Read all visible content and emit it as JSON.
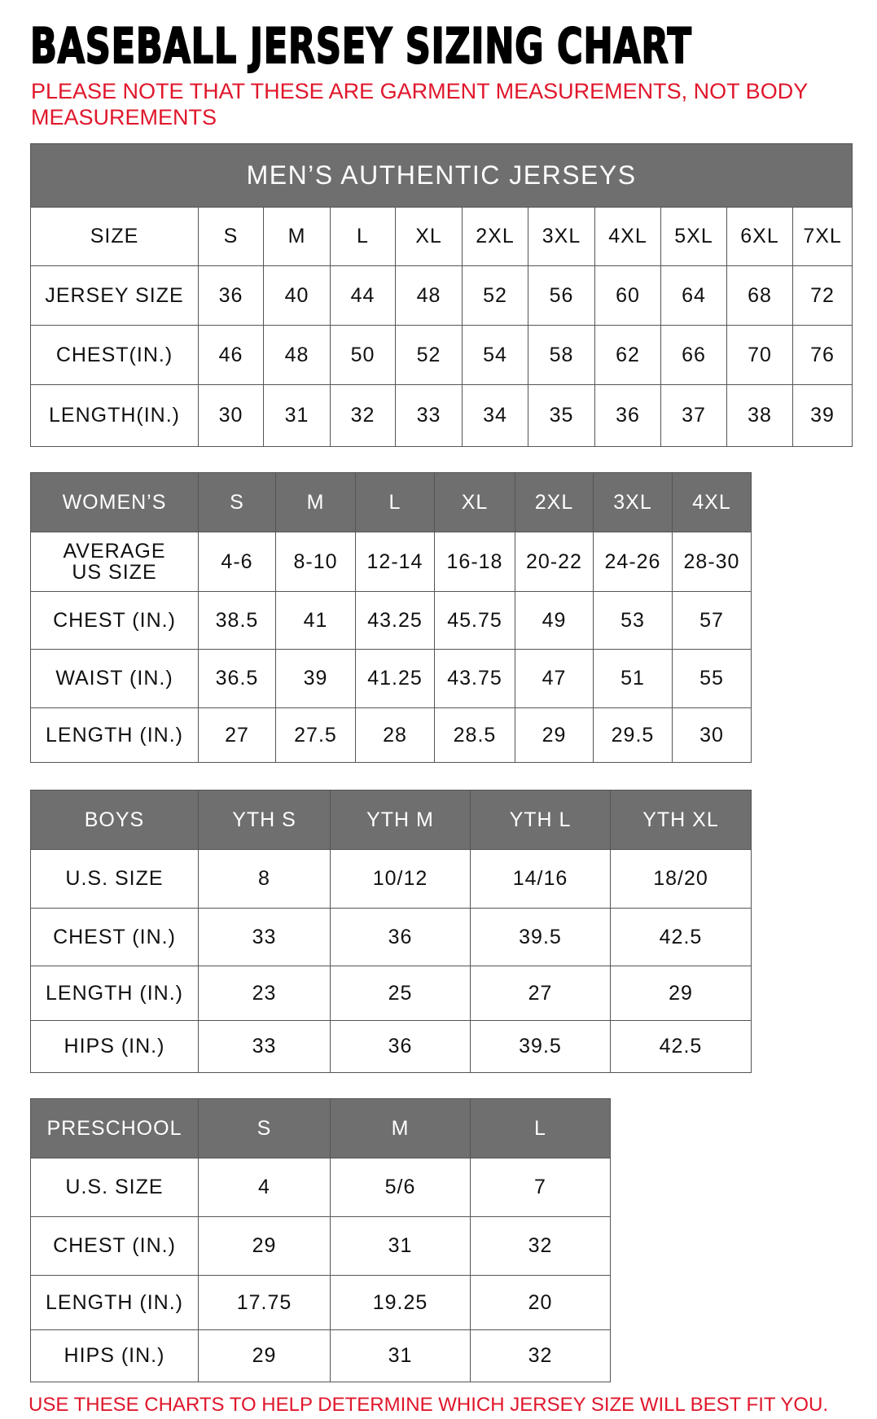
{
  "title": "BASEBALL JERSEY SIZING CHART",
  "note": "PLEASE NOTE THAT THESE ARE GARMENT MEASUREMENTS, NOT BODY MEASUREMENTS",
  "footer": "USE THESE CHARTS TO HELP DETERMINE WHICH JERSEY SIZE WILL BEST FIT YOU.",
  "colors": {
    "header_bg": "#6f6f6f",
    "note_red": "#e0162b"
  },
  "tables": [
    {
      "caption": "MEN’S AUTHENTIC JERSEYS",
      "header": [
        "SIZE",
        "S",
        "M",
        "L",
        "XL",
        "2XL",
        "3XL",
        "4XL",
        "5XL",
        "6XL",
        "7XL"
      ],
      "header_dark": false,
      "rows": [
        [
          "JERSEY SIZE",
          "36",
          "40",
          "44",
          "48",
          "52",
          "56",
          "60",
          "64",
          "68",
          "72"
        ],
        [
          "CHEST(IN.)",
          "46",
          "48",
          "50",
          "52",
          "54",
          "58",
          "62",
          "66",
          "70",
          "76"
        ],
        [
          "LENGTH(IN.)",
          "30",
          "31",
          "32",
          "33",
          "34",
          "35",
          "36",
          "37",
          "38",
          "39"
        ]
      ]
    },
    {
      "header": [
        "WOMEN’S",
        "S",
        "M",
        "L",
        "XL",
        "2XL",
        "3XL",
        "4XL"
      ],
      "header_dark": true,
      "rows": [
        [
          "AVERAGE US SIZE",
          "4-6",
          "8-10",
          "12-14",
          "16-18",
          "20-22",
          "24-26",
          "28-30"
        ],
        [
          "CHEST (IN.)",
          "38.5",
          "41",
          "43.25",
          "45.75",
          "49",
          "53",
          "57"
        ],
        [
          "WAIST (IN.)",
          "36.5",
          "39",
          "41.25",
          "43.75",
          "47",
          "51",
          "55"
        ],
        [
          "LENGTH (IN.)",
          "27",
          "27.5",
          "28",
          "28.5",
          "29",
          "29.5",
          "30"
        ]
      ]
    },
    {
      "header": [
        "BOYS",
        "YTH S",
        "YTH M",
        "YTH L",
        "YTH XL"
      ],
      "header_dark": true,
      "rows": [
        [
          "U.S. SIZE",
          "8",
          "10/12",
          "14/16",
          "18/20"
        ],
        [
          "CHEST (IN.)",
          "33",
          "36",
          "39.5",
          "42.5"
        ],
        [
          "LENGTH (IN.)",
          "23",
          "25",
          "27",
          "29"
        ],
        [
          "HIPS (IN.)",
          "33",
          "36",
          "39.5",
          "42.5"
        ]
      ]
    },
    {
      "header": [
        "PRESCHOOL",
        "S",
        "M",
        "L"
      ],
      "header_dark": true,
      "rows": [
        [
          "U.S. SIZE",
          "4",
          "5/6",
          "7"
        ],
        [
          "CHEST (IN.)",
          "29",
          "31",
          "32"
        ],
        [
          "LENGTH (IN.)",
          "17.75",
          "19.25",
          "20"
        ],
        [
          "HIPS (IN.)",
          "29",
          "31",
          "32"
        ]
      ]
    }
  ]
}
